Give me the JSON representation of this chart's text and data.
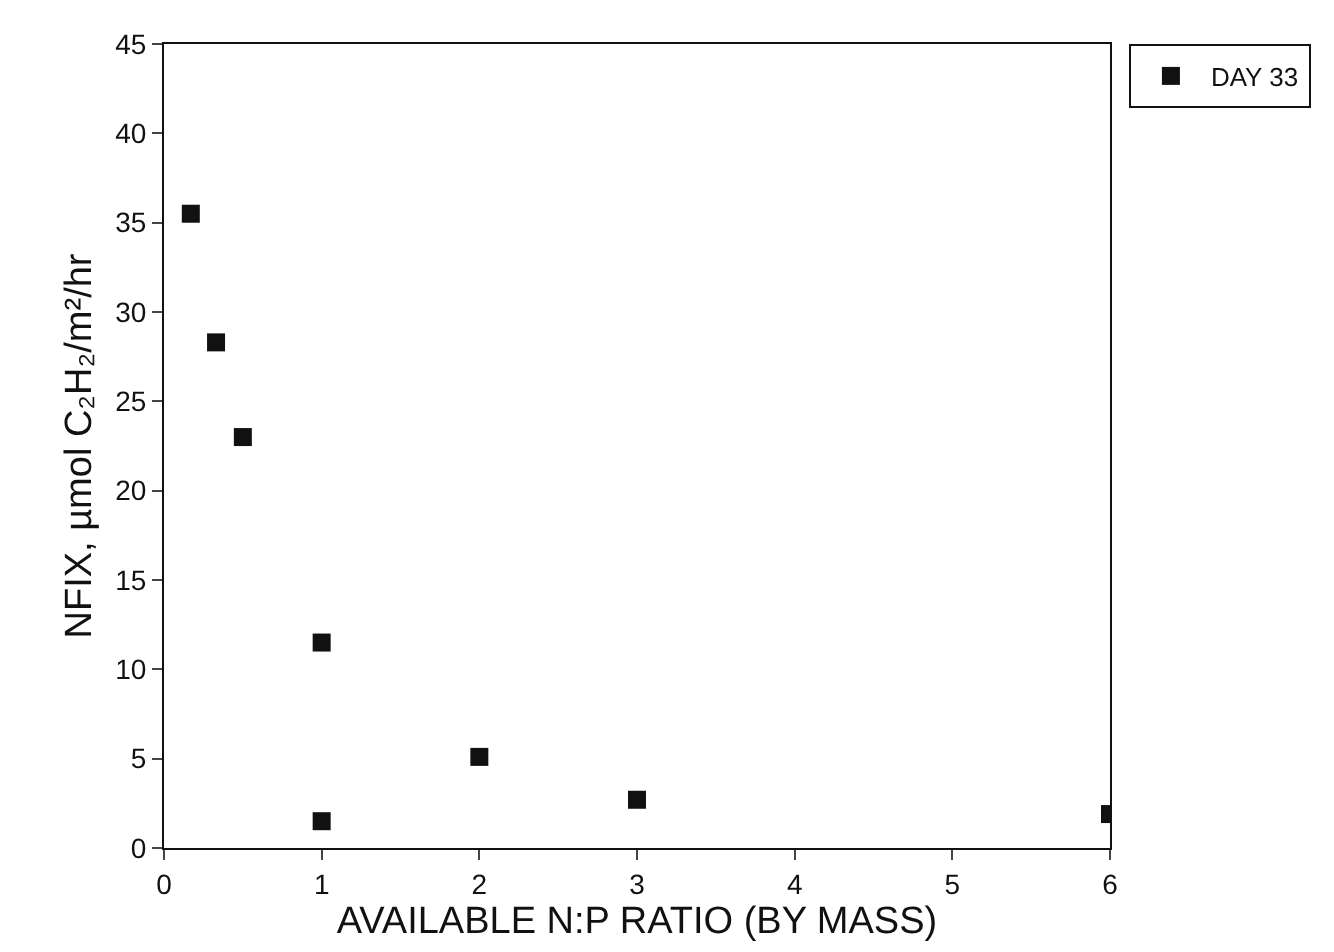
{
  "chart_data": {
    "type": "scatter",
    "xlabel": "AVAILABLE N:P RATIO (BY MASS)",
    "ylabel": "NFIX, µmol C₂H₂/m²/hr",
    "xlim": [
      0,
      6
    ],
    "xticks": [
      0,
      1,
      2,
      3,
      4,
      5,
      6
    ],
    "ylim": [
      0,
      45
    ],
    "yticks": [
      0,
      5,
      10,
      15,
      20,
      25,
      30,
      35,
      40,
      45
    ],
    "series": [
      {
        "name": "DAY 33",
        "color": "#111111",
        "x": [
          0.17,
          0.33,
          0.5,
          1,
          1,
          2,
          3,
          6
        ],
        "values": [
          35.5,
          28.3,
          23.0,
          11.5,
          1.5,
          5.1,
          2.7,
          1.9
        ]
      }
    ],
    "marker": "square",
    "grid": false,
    "legend": "top right"
  }
}
